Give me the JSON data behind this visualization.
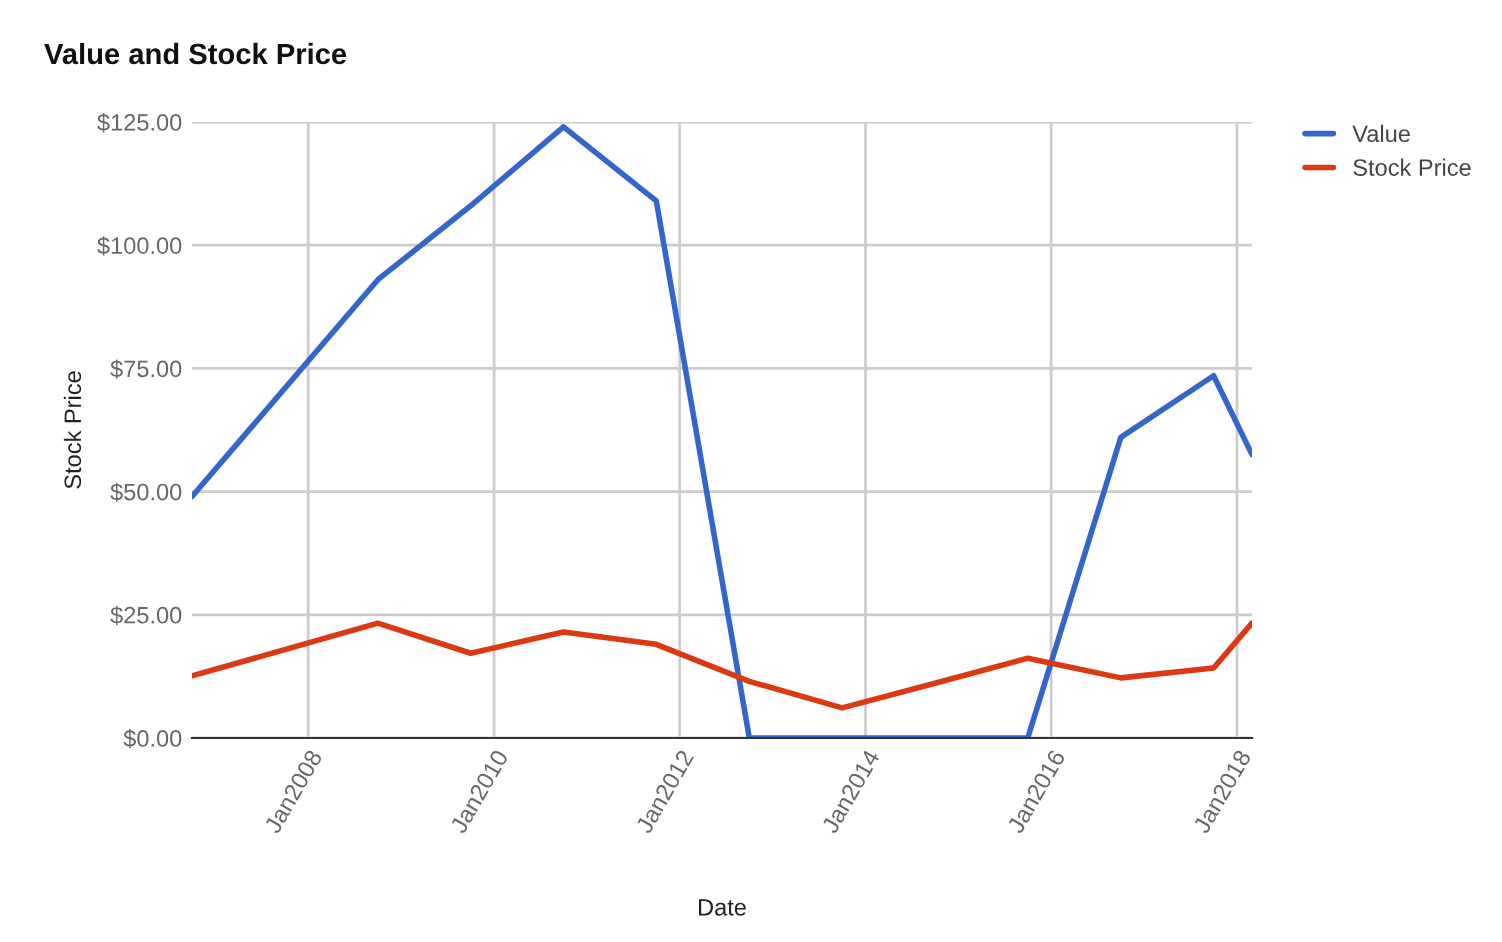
{
  "chart_data": {
    "type": "line",
    "title": "Value and Stock Price",
    "xlabel": "Date",
    "ylabel": "Stock Price",
    "x": [
      "2006-10",
      "2008-10",
      "2009-10",
      "2010-10",
      "2011-10",
      "2012-10",
      "2013-10",
      "2014-10",
      "2015-10",
      "2016-10",
      "2017-10",
      "2018-03"
    ],
    "series": [
      {
        "name": "Value",
        "color": "#3366cc",
        "values": [
          49,
          93,
          108,
          124,
          109,
          0,
          0,
          0,
          0,
          61,
          73.5,
          57.5
        ]
      },
      {
        "name": "Stock Price",
        "color": "#dc3912",
        "values": [
          12.6,
          23.3,
          17.2,
          21.5,
          19,
          11.5,
          6.1,
          11.1,
          16.2,
          12.2,
          14.2,
          23.3
        ]
      }
    ],
    "xlim": [
      "2006-10",
      "2018-03"
    ],
    "xticks": [
      {
        "value": "2008-01",
        "label": "Jan2008"
      },
      {
        "value": "2010-01",
        "label": "Jan2010"
      },
      {
        "value": "2012-01",
        "label": "Jan2012"
      },
      {
        "value": "2014-01",
        "label": "Jan2014"
      },
      {
        "value": "2016-01",
        "label": "Jan2016"
      },
      {
        "value": "2018-01",
        "label": "Jan2018"
      }
    ],
    "ylim": [
      0,
      125
    ],
    "yticks": [
      {
        "value": 0,
        "label": "$0.00"
      },
      {
        "value": 25,
        "label": "$25.00"
      },
      {
        "value": 50,
        "label": "$50.00"
      },
      {
        "value": 75,
        "label": "$75.00"
      },
      {
        "value": 100,
        "label": "$100.00"
      },
      {
        "value": 125,
        "label": "$125.00"
      }
    ],
    "grid": true,
    "legend": "top right",
    "marker": "none",
    "line_style": "solid"
  }
}
